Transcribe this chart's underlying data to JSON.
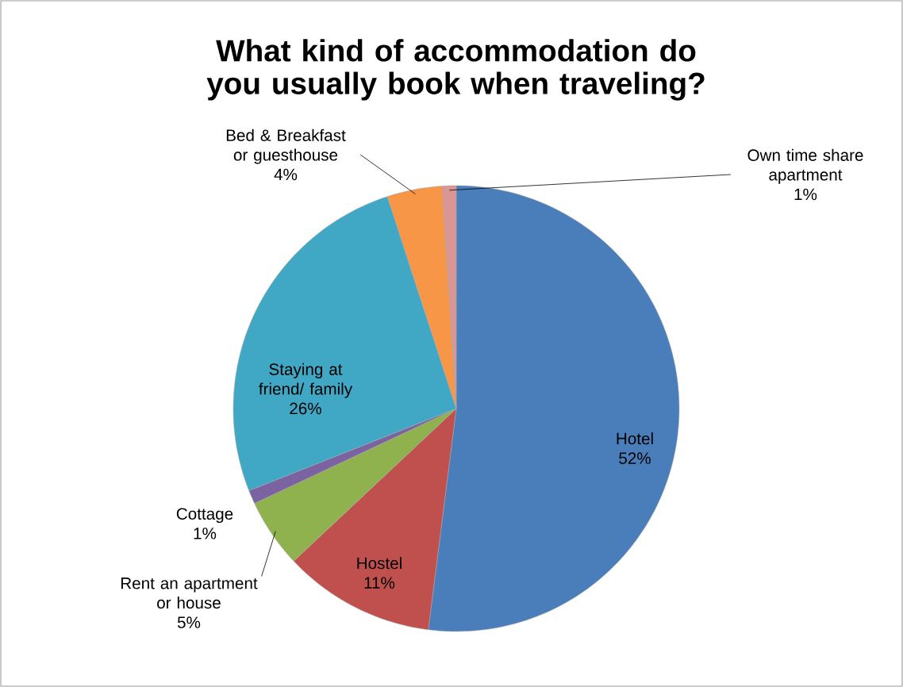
{
  "chart_data": {
    "type": "pie",
    "title": "What kind of accommodation do you usually book when traveling?",
    "categories": [
      "Hotel",
      "Hostel",
      "Rent an apartment or house",
      "Cottage",
      "Staying at friend/ family",
      "Bed & Breakfast or guesthouse",
      "Own time share apartment"
    ],
    "values": [
      52,
      11,
      5,
      1,
      26,
      4,
      1
    ],
    "value_labels": [
      "52%",
      "11%",
      "5%",
      "1%",
      "26%",
      "4%",
      "1%"
    ],
    "colors": [
      "#4a7ebb",
      "#c0504d",
      "#8fb24f",
      "#7b62a0",
      "#40a8c4",
      "#f79646",
      "#d99694"
    ]
  }
}
